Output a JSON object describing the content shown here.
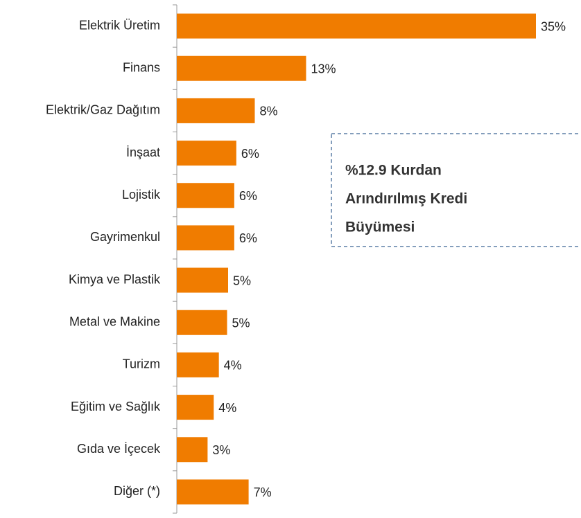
{
  "chart_data": {
    "type": "bar",
    "orientation": "horizontal",
    "categories": [
      "Elektrik Üretim",
      "Finans",
      "Elektrik/Gaz Dağıtım",
      "İnşaat",
      "Lojistik",
      "Gayrimenkul",
      "Kimya ve Plastik",
      "Metal ve Makine",
      "Turizm",
      "Eğitim ve Sağlık",
      "Gıda ve İçecek",
      "Diğer (*)"
    ],
    "values": [
      35,
      12.6,
      7.6,
      5.8,
      5.6,
      5.6,
      5.0,
      4.9,
      4.1,
      3.6,
      3.0,
      7.0
    ],
    "value_labels": [
      "35%",
      "13%",
      "8%",
      "6%",
      "6%",
      "6%",
      "5%",
      "5%",
      "4%",
      "4%",
      "3%",
      "7%"
    ],
    "color": "#f07c00",
    "annotation": [
      "%12.9 Kurdan",
      "Arındırılmış Kredi",
      "Büyümesi"
    ]
  }
}
